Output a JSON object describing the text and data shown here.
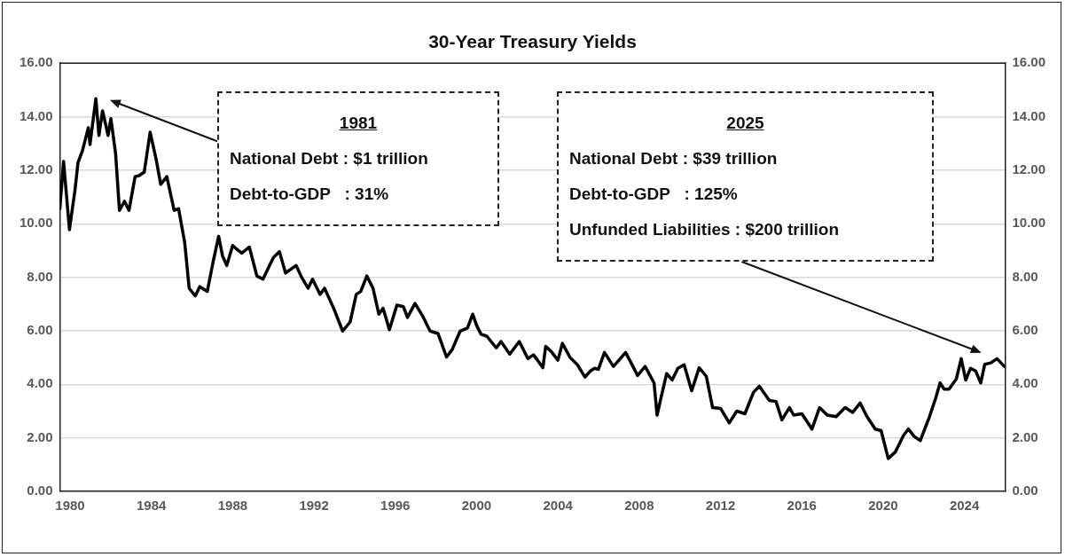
{
  "chart_data": {
    "type": "line",
    "title": "30-Year Treasury Yields",
    "x": [
      1979.5,
      1979.68,
      1979.97,
      1980.24,
      1980.39,
      1980.61,
      1980.9,
      1980.98,
      1981.27,
      1981.42,
      1981.6,
      1981.87,
      1982.01,
      1982.24,
      1982.43,
      1982.68,
      1982.9,
      1983.2,
      1983.4,
      1983.65,
      1983.94,
      1984.24,
      1984.46,
      1984.76,
      1985.12,
      1985.34,
      1985.64,
      1985.86,
      1986.16,
      1986.38,
      1986.75,
      1987.05,
      1987.31,
      1987.5,
      1987.71,
      1988.0,
      1988.2,
      1988.45,
      1988.82,
      1989.19,
      1989.49,
      1990.0,
      1990.3,
      1990.6,
      1991.12,
      1991.4,
      1991.71,
      1991.93,
      1992.3,
      1992.52,
      1992.97,
      1993.41,
      1993.78,
      1994.08,
      1994.3,
      1994.6,
      1994.9,
      1995.19,
      1995.4,
      1995.71,
      1996.08,
      1996.4,
      1996.6,
      1996.97,
      1997.34,
      1997.71,
      1998.1,
      1998.52,
      1998.8,
      1999.19,
      1999.55,
      1999.81,
      2000.0,
      2000.22,
      2000.5,
      2000.97,
      2001.2,
      2001.63,
      2002.1,
      2002.52,
      2002.8,
      2003.0,
      2003.26,
      2003.4,
      2003.7,
      2004.0,
      2004.22,
      2004.6,
      2004.96,
      2005.33,
      2005.6,
      2005.8,
      2005.99,
      2006.29,
      2006.73,
      2007.0,
      2007.33,
      2007.6,
      2007.92,
      2008.29,
      2008.73,
      2008.88,
      2009.1,
      2009.35,
      2009.62,
      2009.9,
      2010.21,
      2010.58,
      2010.95,
      2011.3,
      2011.61,
      2012.0,
      2012.43,
      2012.8,
      2013.2,
      2013.62,
      2013.91,
      2014.4,
      2014.73,
      2015.02,
      2015.39,
      2015.6,
      2016.0,
      2016.5,
      2016.87,
      2017.25,
      2017.69,
      2018.13,
      2018.5,
      2018.87,
      2019.2,
      2019.61,
      2019.9,
      2020.25,
      2020.6,
      2021.0,
      2021.24,
      2021.53,
      2021.83,
      2022.28,
      2022.58,
      2022.8,
      2023.0,
      2023.24,
      2023.6,
      2023.84,
      2024.06,
      2024.3,
      2024.55,
      2024.8,
      2025.0,
      2025.3,
      2025.6,
      2025.96
    ],
    "values": [
      10.56,
      12.33,
      9.78,
      11.24,
      12.28,
      12.73,
      13.59,
      12.96,
      14.67,
      13.3,
      14.22,
      13.3,
      13.93,
      12.62,
      10.5,
      10.84,
      10.5,
      11.76,
      11.8,
      11.93,
      13.42,
      12.39,
      11.47,
      11.76,
      10.5,
      10.56,
      9.3,
      7.59,
      7.3,
      7.65,
      7.47,
      8.62,
      9.53,
      8.8,
      8.44,
      9.19,
      9.05,
      8.9,
      9.13,
      8.05,
      7.93,
      8.73,
      8.96,
      8.16,
      8.44,
      7.99,
      7.59,
      7.93,
      7.36,
      7.59,
      6.84,
      5.99,
      6.33,
      7.36,
      7.47,
      8.05,
      7.6,
      6.62,
      6.84,
      6.04,
      6.96,
      6.9,
      6.5,
      7.02,
      6.56,
      5.99,
      5.9,
      5.02,
      5.3,
      5.99,
      6.1,
      6.62,
      6.2,
      5.87,
      5.8,
      5.36,
      5.6,
      5.13,
      5.6,
      4.96,
      5.1,
      4.9,
      4.62,
      5.42,
      5.2,
      4.9,
      5.53,
      5.0,
      4.73,
      4.27,
      4.5,
      4.6,
      4.56,
      5.19,
      4.67,
      4.9,
      5.19,
      4.8,
      4.33,
      4.67,
      4.05,
      2.85,
      3.59,
      4.4,
      4.16,
      4.6,
      4.73,
      3.76,
      4.62,
      4.3,
      3.13,
      3.1,
      2.56,
      3.0,
      2.9,
      3.7,
      3.93,
      3.4,
      3.36,
      2.67,
      3.13,
      2.85,
      2.9,
      2.33,
      3.13,
      2.85,
      2.79,
      3.13,
      2.95,
      3.3,
      2.8,
      2.33,
      2.27,
      1.23,
      1.47,
      2.09,
      2.33,
      2.05,
      1.9,
      2.79,
      3.47,
      4.05,
      3.82,
      3.82,
      4.2,
      4.96,
      4.16,
      4.6,
      4.5,
      4.05,
      4.75,
      4.8,
      4.96,
      4.67
    ],
    "color": "#000000",
    "line_style": "solid",
    "marker": "none",
    "xlim": [
      1979.5,
      2026
    ],
    "xticks": [
      1980,
      1984,
      1988,
      1992,
      1996,
      2000,
      2004,
      2008,
      2012,
      2016,
      2020,
      2024
    ],
    "ylim": [
      0,
      16
    ],
    "yticks": [
      {
        "value": 0,
        "label": "0.00"
      },
      {
        "value": 2,
        "label": "2.00"
      },
      {
        "value": 4,
        "label": "4.00"
      },
      {
        "value": 6,
        "label": "6.00"
      },
      {
        "value": 8,
        "label": "8.00"
      },
      {
        "value": 10,
        "label": "10.00"
      },
      {
        "value": 12,
        "label": "12.00"
      },
      {
        "value": 14,
        "label": "14.00"
      },
      {
        "value": 16,
        "label": "16.00"
      }
    ],
    "y2lim": [
      0,
      16
    ],
    "y2ticks": [
      {
        "value": 0,
        "label": "0.00"
      },
      {
        "value": 2,
        "label": "2.00"
      },
      {
        "value": 4,
        "label": "4.00"
      },
      {
        "value": 6,
        "label": "6.00"
      },
      {
        "value": 8,
        "label": "8.00"
      },
      {
        "value": 10,
        "label": "10.00"
      },
      {
        "value": 12,
        "label": "12.00"
      },
      {
        "value": 14,
        "label": "14.00"
      },
      {
        "value": 16,
        "label": "16.00"
      }
    ],
    "grid": "y",
    "legend": false,
    "annotations": [
      "1981\nNational Debt : $1 trillion\nDebt-to-GDP   : 31%",
      "2025\nNational Debt : $39 trillion\nDebt-to-GDP   : 125%\nUnfunded Liabilities : $200 trillion"
    ]
  }
}
